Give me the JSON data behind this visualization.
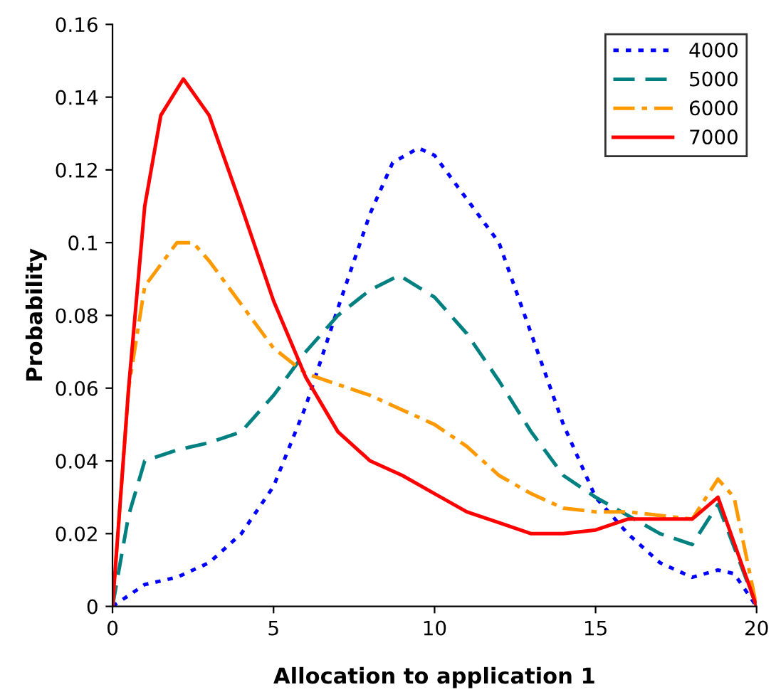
{
  "chart_data": {
    "type": "line",
    "xlabel": "Allocation to application 1",
    "ylabel": "Probability",
    "xlim": [
      0,
      20
    ],
    "xticks": [
      0,
      5,
      10,
      15,
      20
    ],
    "ylim": [
      0,
      0.16
    ],
    "yticks": [
      0,
      0.02,
      0.04,
      0.06,
      0.08,
      0.1,
      0.12,
      0.14,
      0.16
    ],
    "grid": false,
    "legend": "top right",
    "marker": "none",
    "series": [
      {
        "name": "4000",
        "color": "#0000ff",
        "line_style": "dotted",
        "x": [
          0,
          1,
          2,
          3,
          4,
          5,
          6,
          7,
          8,
          8.7,
          9.5,
          10,
          11,
          12,
          13,
          14,
          15,
          16,
          17,
          18,
          18.8,
          19.3,
          20
        ],
        "values": [
          0,
          0.006,
          0.008,
          0.012,
          0.02,
          0.033,
          0.055,
          0.082,
          0.108,
          0.122,
          0.126,
          0.124,
          0.112,
          0.1,
          0.075,
          0.05,
          0.03,
          0.02,
          0.012,
          0.008,
          0.01,
          0.009,
          0
        ]
      },
      {
        "name": "5000",
        "color": "#008080",
        "line_style": "dashed",
        "x": [
          0,
          0.5,
          1,
          2,
          3,
          4,
          5,
          6,
          7,
          8,
          8.9,
          10,
          11,
          12,
          13,
          14,
          15,
          16,
          17,
          18,
          18.8,
          20
        ],
        "values": [
          0,
          0.025,
          0.04,
          0.043,
          0.045,
          0.048,
          0.058,
          0.07,
          0.08,
          0.087,
          0.091,
          0.085,
          0.075,
          0.062,
          0.048,
          0.036,
          0.03,
          0.025,
          0.02,
          0.017,
          0.028,
          0
        ]
      },
      {
        "name": "6000",
        "color": "#ff9900",
        "line_style": "dashdot",
        "x": [
          0,
          0.5,
          1,
          2,
          2.5,
          3,
          4,
          5,
          6,
          7,
          8,
          9,
          10,
          11,
          12,
          13,
          14,
          15,
          16,
          17,
          18,
          18.8,
          19.3,
          20
        ],
        "values": [
          0,
          0.06,
          0.088,
          0.1,
          0.1,
          0.095,
          0.083,
          0.071,
          0.064,
          0.061,
          0.058,
          0.054,
          0.05,
          0.044,
          0.036,
          0.031,
          0.027,
          0.026,
          0.026,
          0.025,
          0.024,
          0.035,
          0.03,
          0
        ]
      },
      {
        "name": "7000",
        "color": "#ff0000",
        "line_style": "solid",
        "x": [
          0,
          0.5,
          1,
          1.5,
          2.2,
          3,
          4,
          5,
          6,
          7,
          8,
          9,
          10,
          11,
          12,
          13,
          14,
          15,
          16,
          17,
          18,
          18.8,
          20
        ],
        "values": [
          0,
          0.06,
          0.11,
          0.135,
          0.145,
          0.135,
          0.11,
          0.084,
          0.063,
          0.048,
          0.04,
          0.036,
          0.031,
          0.026,
          0.023,
          0.02,
          0.02,
          0.021,
          0.024,
          0.024,
          0.024,
          0.03,
          0
        ]
      }
    ]
  }
}
